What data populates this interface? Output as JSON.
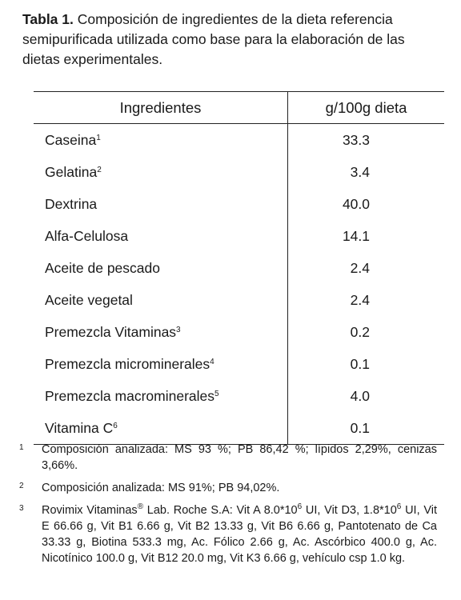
{
  "caption": {
    "label": "Tabla 1.",
    "text": "Composición de ingredientes de la dieta referencia semipurificada utilizada como base para la elaboración de las dietas experimentales."
  },
  "table": {
    "header": [
      "Ingredientes",
      "g/100g dieta"
    ],
    "rows": [
      {
        "name": "Caseina",
        "sup": "1",
        "value": "33.3"
      },
      {
        "name": "Gelatina",
        "sup": "2",
        "value": "3.4"
      },
      {
        "name": "Dextrina",
        "value": "40.0"
      },
      {
        "name": "Alfa-Celulosa",
        "value": "14.1"
      },
      {
        "name": "Aceite de pescado",
        "value": "2.4"
      },
      {
        "name": "Aceite  vegetal",
        "value": "2.4"
      },
      {
        "name": "Premezcla Vitaminas",
        "sup": "3",
        "value": "0.2"
      },
      {
        "name": "Premezcla microminerales",
        "sup": "4",
        "value": "0.1"
      },
      {
        "name": "Premezcla macrominerales",
        "sup": "5",
        "value": "4.0"
      },
      {
        "name": "Vitamina C",
        "sup": "6",
        "value": "0.1"
      }
    ]
  },
  "footnotes": [
    {
      "mark": "1",
      "parts": [
        {
          "t": "Composición analizada: MS 93 %; PB 86,42 %; lípidos 2,29%, cenizas 3,66%."
        }
      ]
    },
    {
      "mark": "2",
      "parts": [
        {
          "t": "Composición analizada: MS 91%; PB 94,02%."
        }
      ]
    },
    {
      "mark": "3",
      "parts": [
        {
          "t": "Rovimix Vitaminas"
        },
        {
          "s": "®"
        },
        {
          "t": " Lab. Roche S.A: Vit A 8.0*10"
        },
        {
          "s": "6"
        },
        {
          "t": " UI, Vit D3, 1.8*10"
        },
        {
          "s": "6"
        },
        {
          "t": " UI, Vit E 66.66 g, Vit B1 6.66 g, Vit B2 13.33 g, Vit B6 6.66 g, Pantotenato de Ca 33.33 g, Biotina 533.3 mg, Ac. Fólico 2.66 g, Ac. Ascórbico 400.0 g, Ac. Nicotínico 100.0 g, Vit B12 20.0 mg, Vit K3 6.66 g, vehículo csp 1.0 kg."
        }
      ]
    }
  ]
}
